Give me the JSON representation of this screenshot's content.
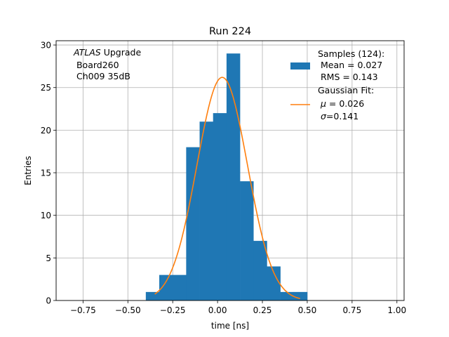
{
  "chart_data": {
    "type": "bar",
    "title": "Run 224",
    "xlabel": "time [ns]",
    "ylabel": "Entries",
    "xlim": [
      -0.9,
      1.04
    ],
    "ylim": [
      0,
      30.5
    ],
    "xticks": [
      -0.75,
      -0.5,
      -0.25,
      0.0,
      0.25,
      0.5,
      0.75,
      1.0
    ],
    "xtick_labels": [
      "−0.75",
      "−0.50",
      "−0.25",
      "0.00",
      "0.25",
      "0.50",
      "0.75",
      "1.00"
    ],
    "yticks": [
      0,
      5,
      10,
      15,
      20,
      25,
      30
    ],
    "ytick_labels": [
      "0",
      "5",
      "10",
      "15",
      "20",
      "25",
      "30"
    ],
    "grid": true,
    "annotation": {
      "italic": "ATLAS",
      "line1_rest": " Upgrade",
      "line2": " Board260",
      "line3": " Ch009 35dB"
    },
    "histogram": {
      "name": "Samples (124):",
      "color": "#1f77b4",
      "bin_edges": [
        -0.4,
        -0.325,
        -0.25,
        -0.175,
        -0.1,
        -0.025,
        0.05,
        0.125,
        0.2,
        0.275,
        0.35,
        0.425,
        0.5
      ],
      "counts": [
        1,
        3,
        3,
        18,
        21,
        22,
        29,
        14,
        7,
        4,
        1,
        1
      ]
    },
    "fit": {
      "name": "Gaussian Fit:",
      "color": "#ff7f0e",
      "mu": 0.026,
      "sigma": 0.141,
      "amplitude": 26.2,
      "x_range": [
        -0.35,
        0.46
      ]
    },
    "legend": {
      "placement": "top-right",
      "samples_title": "Samples (124):",
      "samples_mean": " Mean = 0.027",
      "samples_rms": " RMS = 0.143",
      "fit_title": "Gaussian Fit:",
      "fit_mu_symbol": "μ",
      "fit_mu_value": " = 0.026",
      "fit_sigma_symbol": "σ",
      "fit_sigma_value": "=0.141"
    }
  }
}
